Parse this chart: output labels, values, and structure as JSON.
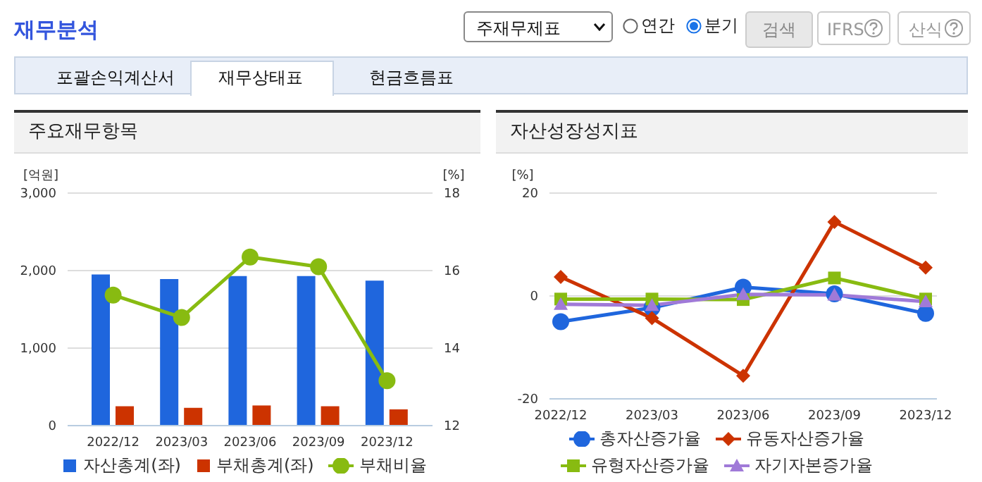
{
  "chart_data": [
    {
      "type": "other",
      "title": "재무분석",
      "annotations": [
        "주재무제표",
        "연간",
        "분기",
        "검색",
        "IFRS",
        "산식",
        "포괄손익계산서",
        "재무상태표",
        "현금흐름표"
      ]
    },
    {
      "type": "bar",
      "title": "주요재무항목",
      "ylabel": "[억원]",
      "y2label": "[%]",
      "categories": [
        "2022/12",
        "2023/03",
        "2023/06",
        "2023/09",
        "2023/12"
      ],
      "series": [
        {
          "name": "자산총계(좌)",
          "color": "#1f66dd",
          "values": [
            1950,
            1890,
            1930,
            1930,
            1870
          ]
        },
        {
          "name": "부채총계(좌)",
          "color": "#cc3300",
          "values": [
            250,
            230,
            260,
            250,
            210
          ]
        },
        {
          "name": "부채비율",
          "type": "line",
          "axis": "y2",
          "marker": "circle",
          "color": "#88bb11",
          "values": [
            15.37,
            14.79,
            16.35,
            16.1,
            13.16
          ]
        }
      ],
      "ylim": [
        0,
        3000
      ],
      "yticks": [
        {
          "value": 0,
          "label": "0"
        },
        {
          "value": 1000,
          "label": "1,000"
        },
        {
          "value": 2000,
          "label": "2,000"
        },
        {
          "value": 3000,
          "label": "3,000"
        }
      ],
      "y2lim": [
        12,
        18
      ],
      "y2ticks": [
        12,
        14,
        16,
        18
      ],
      "grid": "y",
      "legend": "bottom"
    },
    {
      "type": "line",
      "title": "자산성장성지표",
      "ylabel": "[%]",
      "categories": [
        "2022/12",
        "2023/03",
        "2023/06",
        "2023/09",
        "2023/12"
      ],
      "series": [
        {
          "name": "총자산증가율",
          "marker": "circle",
          "color": "#1f66dd",
          "values": [
            -5.0,
            -2.3,
            1.7,
            0.4,
            -3.4
          ]
        },
        {
          "name": "유동자산증가율",
          "marker": "diamond",
          "color": "#cc3300",
          "values": [
            3.7,
            -4.3,
            -15.5,
            14.4,
            5.5
          ]
        },
        {
          "name": "유형자산증가율",
          "marker": "square",
          "color": "#88bb11",
          "values": [
            -0.6,
            -0.6,
            -0.7,
            3.5,
            -0.6
          ]
        },
        {
          "name": "자기자본증가율",
          "marker": "triangle",
          "color": "#a07ad8",
          "values": [
            -1.6,
            -1.8,
            0.3,
            0.2,
            -1.1
          ]
        }
      ],
      "ylim": [
        -20,
        20
      ],
      "yticks": [
        -20,
        0,
        20
      ],
      "grid": "y",
      "legend": "bottom"
    }
  ]
}
